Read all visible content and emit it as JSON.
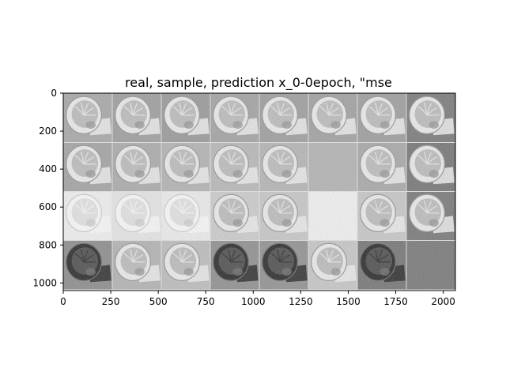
{
  "chart_data": {
    "type": "heatmap",
    "title": "real, sample, prediction x_0-0epoch, \"mse",
    "xlabel": "",
    "ylabel": "",
    "xlim": [
      0,
      2064
    ],
    "ylim": [
      1040,
      0
    ],
    "xticks": [
      0,
      250,
      500,
      750,
      1000,
      1250,
      1500,
      1750,
      2000
    ],
    "yticks": [
      0,
      200,
      400,
      600,
      800,
      1000
    ],
    "grid": false,
    "legend": "none",
    "tile_size": 258,
    "rows": 4,
    "cols": 8,
    "tile_gray_levels": [
      [
        0.66,
        0.62,
        0.6,
        0.64,
        0.62,
        0.63,
        0.62,
        0.48
      ],
      [
        0.64,
        0.67,
        0.7,
        0.72,
        0.71,
        0.7,
        0.66,
        0.46
      ],
      [
        0.94,
        0.9,
        0.93,
        0.8,
        0.78,
        0.95,
        0.78,
        0.47
      ],
      [
        0.55,
        0.7,
        0.74,
        0.56,
        0.57,
        0.78,
        0.46,
        0.47
      ]
    ],
    "tile_has_content": [
      [
        true,
        true,
        true,
        true,
        true,
        true,
        true,
        true
      ],
      [
        true,
        true,
        true,
        true,
        true,
        false,
        true,
        true
      ],
      [
        true,
        true,
        true,
        true,
        true,
        false,
        true,
        true
      ],
      [
        true,
        true,
        true,
        true,
        true,
        true,
        true,
        false
      ]
    ]
  }
}
